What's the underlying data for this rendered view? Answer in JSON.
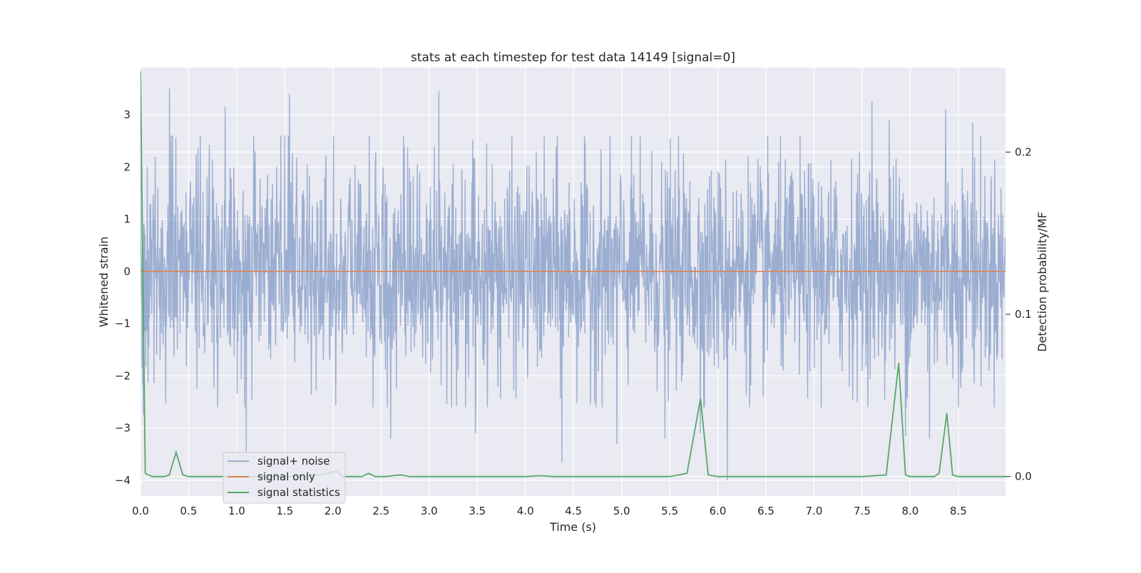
{
  "chart_data": {
    "type": "line",
    "title": "stats at each timestep for test data 14149 [signal=0]",
    "xlabel": "Time (s)",
    "ylabel": "Whitened strain",
    "y2label": "Detection probability/MF",
    "xlim": [
      0,
      8.99
    ],
    "ylim": [
      -4.3,
      3.9
    ],
    "y2lim": [
      -0.012,
      0.252
    ],
    "x_ticks": [
      0.0,
      0.5,
      1.0,
      1.5,
      2.0,
      2.5,
      3.0,
      3.5,
      4.0,
      4.5,
      5.0,
      5.5,
      6.0,
      6.5,
      7.0,
      7.5,
      8.0,
      8.5
    ],
    "x_tick_labels": [
      "0.0",
      "0.5",
      "1.0",
      "1.5",
      "2.0",
      "2.5",
      "3.0",
      "3.5",
      "4.0",
      "4.5",
      "5.0",
      "5.5",
      "6.0",
      "6.5",
      "7.0",
      "7.5",
      "8.0",
      "8.5"
    ],
    "y_ticks": [
      3,
      2,
      1,
      0,
      -1,
      -2,
      -3,
      -4
    ],
    "y_tick_labels": [
      "3",
      "2",
      "1",
      "0",
      "−1",
      "−2",
      "−3",
      "−4"
    ],
    "y2_ticks": [
      0.2,
      0.1,
      0.0
    ],
    "y2_tick_labels": [
      "0.2",
      "0.1",
      "0.0"
    ],
    "grid": true,
    "legend_position": "lower-left",
    "series": [
      {
        "name": "signal+ noise",
        "axis": "left",
        "color": "#4c72b0",
        "opacity": 0.5,
        "kind": "noise",
        "n_samples": 2300,
        "typical_amplitude": 1.2,
        "spikes": [
          {
            "x": 0.0,
            "y": 3.5
          },
          {
            "x": 0.03,
            "y": -2.75
          },
          {
            "x": 0.3,
            "y": 3.5
          },
          {
            "x": 1.1,
            "y": -3.45
          },
          {
            "x": 1.55,
            "y": 3.4
          },
          {
            "x": 0.88,
            "y": 3.15
          },
          {
            "x": 3.1,
            "y": 3.45
          },
          {
            "x": 4.38,
            "y": -3.65
          },
          {
            "x": 6.1,
            "y": -4.0
          },
          {
            "x": 7.6,
            "y": 3.25
          },
          {
            "x": 8.37,
            "y": 3.1
          },
          {
            "x": 3.48,
            "y": -3.1
          },
          {
            "x": 2.6,
            "y": -3.2
          },
          {
            "x": 5.45,
            "y": -3.2
          },
          {
            "x": 4.95,
            "y": -3.3
          },
          {
            "x": 7.78,
            "y": 2.9
          },
          {
            "x": 7.95,
            "y": -3.15
          },
          {
            "x": 8.2,
            "y": -3.2
          },
          {
            "x": 5.82,
            "y": -3.1
          },
          {
            "x": 8.65,
            "y": 2.85
          }
        ]
      },
      {
        "name": "signal only",
        "axis": "left",
        "color": "#dd8452",
        "x": [
          0.0,
          8.99
        ],
        "y": [
          0.0,
          0.0
        ]
      },
      {
        "name": "signal statistics",
        "axis": "right",
        "color": "#55a868",
        "x": [
          0.0,
          0.05,
          0.12,
          0.25,
          0.3,
          0.37,
          0.44,
          0.5,
          0.6,
          0.7,
          0.8,
          0.9,
          1.0,
          1.1,
          1.2,
          1.3,
          1.4,
          1.5,
          1.6,
          1.7,
          1.8,
          1.9,
          2.0,
          2.05,
          2.1,
          2.2,
          2.3,
          2.37,
          2.44,
          2.55,
          2.7,
          2.8,
          3.0,
          3.5,
          4.0,
          4.15,
          4.3,
          4.5,
          5.0,
          5.5,
          5.68,
          5.82,
          5.9,
          6.0,
          6.5,
          7.0,
          7.5,
          7.75,
          7.88,
          7.95,
          8.0,
          8.25,
          8.3,
          8.38,
          8.44,
          8.5,
          8.8,
          8.99
        ],
        "y": [
          0.25,
          0.002,
          0.0,
          0.0,
          0.001,
          0.015,
          0.001,
          0.0,
          0.0,
          0.0,
          0.0,
          0.0,
          0.0,
          0.0,
          0.0,
          0.0,
          0.0,
          0.0,
          0.0,
          0.0,
          0.001,
          0.001,
          0.003,
          0.003,
          0.0,
          0.0,
          0.0,
          0.002,
          0.0,
          0.0,
          0.001,
          0.0,
          0.0,
          0.0,
          0.0,
          0.0005,
          0.0,
          0.0,
          0.0,
          0.0,
          0.002,
          0.048,
          0.001,
          0.0,
          0.0,
          0.0,
          0.0,
          0.001,
          0.07,
          0.001,
          0.0,
          0.0,
          0.002,
          0.039,
          0.001,
          0.0,
          0.0,
          0.0
        ]
      }
    ]
  }
}
